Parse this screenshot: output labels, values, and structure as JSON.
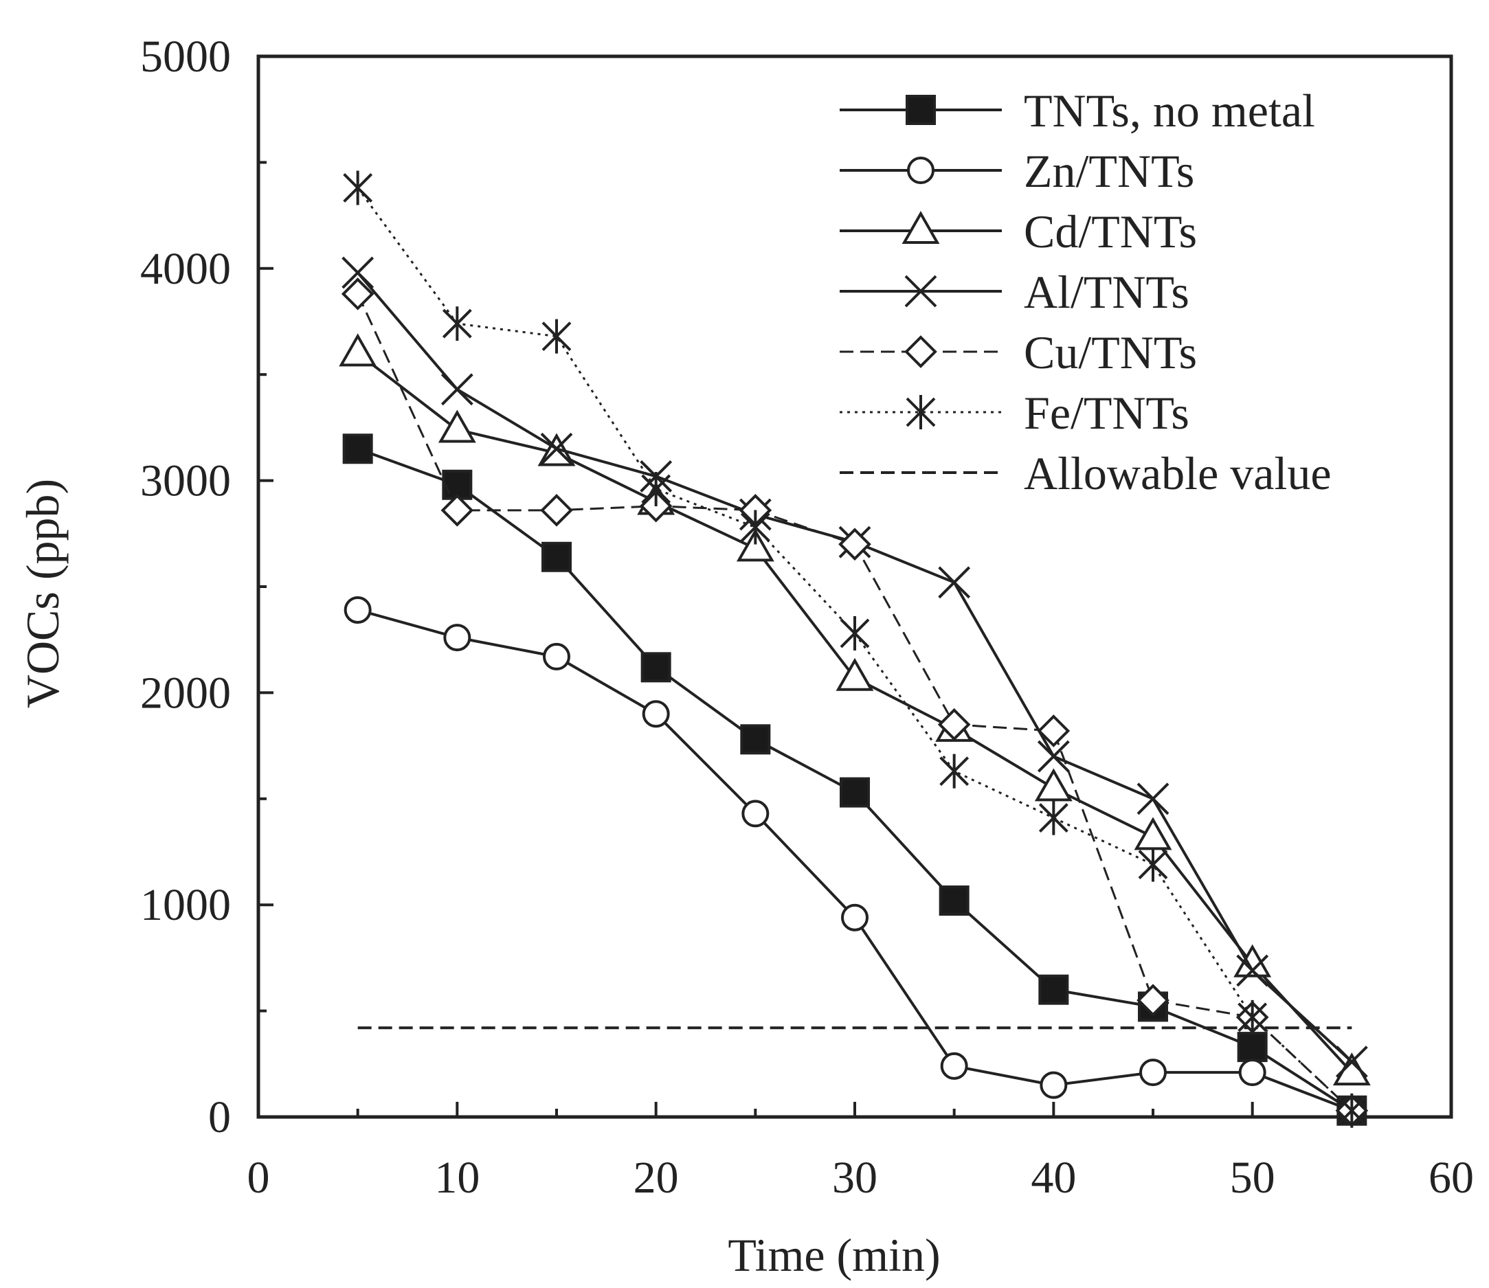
{
  "chart_data": {
    "type": "line",
    "title": "",
    "xlabel": "Time (min)",
    "ylabel": "VOCs (ppb)",
    "xlim": [
      0,
      60
    ],
    "ylim": [
      0,
      5000
    ],
    "x_ticks": [
      0,
      10,
      20,
      30,
      40,
      50,
      60
    ],
    "x_tick_labels": [
      "0",
      "10",
      "20",
      "30",
      "40",
      "50",
      "60"
    ],
    "y_ticks": [
      0,
      1000,
      2000,
      3000,
      4000,
      5000
    ],
    "y_tick_labels": [
      "0",
      "1000",
      "2000",
      "3000",
      "4000",
      "5000"
    ],
    "grid": false,
    "legend_position": "top-right",
    "x": [
      5,
      10,
      15,
      20,
      25,
      30,
      35,
      40,
      45,
      50,
      55
    ],
    "series": [
      {
        "name": "TNTs, no metal",
        "marker": "filled-square",
        "line": "solid",
        "values": [
          3150,
          2980,
          2640,
          2120,
          1780,
          1530,
          1020,
          600,
          520,
          330,
          30
        ]
      },
      {
        "name": "Zn/TNTs",
        "marker": "open-circle",
        "line": "solid",
        "values": [
          2390,
          2260,
          2170,
          1900,
          1430,
          940,
          240,
          150,
          210,
          210,
          30
        ]
      },
      {
        "name": "Cd/TNTs",
        "marker": "open-triangle",
        "line": "solid",
        "values": [
          3600,
          3240,
          3130,
          2900,
          2680,
          2070,
          1830,
          1550,
          1320,
          720,
          210
        ]
      },
      {
        "name": "Al/TNTs",
        "marker": "x-cross",
        "line": "solid",
        "values": [
          3980,
          3430,
          3150,
          3020,
          2840,
          2710,
          2520,
          1700,
          1500,
          690,
          260
        ]
      },
      {
        "name": "Cu/TNTs",
        "marker": "open-diamond",
        "line": "dashed",
        "values": [
          3880,
          2860,
          2860,
          2880,
          2860,
          2700,
          1850,
          1820,
          550,
          470,
          30
        ]
      },
      {
        "name": "Fe/TNTs",
        "marker": "asterisk",
        "line": "dotted",
        "values": [
          4380,
          3740,
          3680,
          2960,
          2780,
          2280,
          1630,
          1410,
          1190,
          470,
          30
        ]
      }
    ],
    "reference_line": {
      "name": "Allowable value",
      "value": 420,
      "x_range": [
        5,
        55
      ],
      "line": "dashed"
    }
  }
}
